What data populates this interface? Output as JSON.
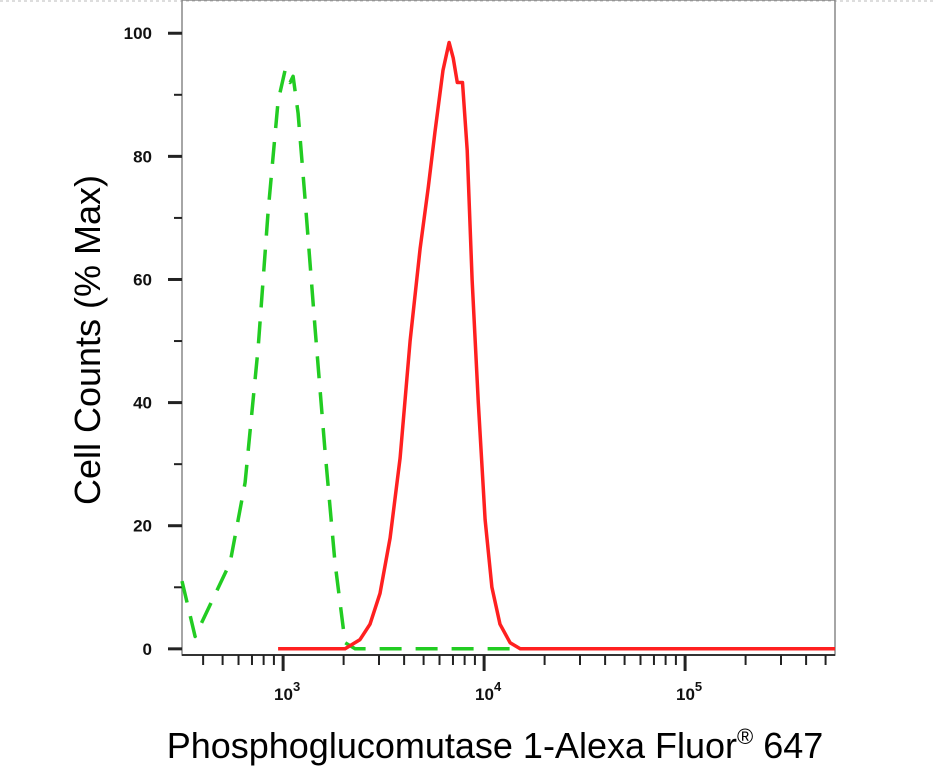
{
  "chart_data": {
    "type": "line",
    "title": "",
    "xlabel": "Phosphoglucomutase 1-Alexa Fluor",
    "xlabel_superscript": "®",
    "xlabel_suffix": " 647",
    "ylabel": "Cell Counts (% Max)",
    "xscale": "log",
    "xlim": [
      314,
      557000
    ],
    "ylim": [
      -1,
      105.4
    ],
    "yticks": [
      0,
      20,
      40,
      60,
      80,
      100
    ],
    "xticks": [
      {
        "base": "10",
        "exp": "3",
        "value": 1000
      },
      {
        "base": "10",
        "exp": "4",
        "value": 10000
      },
      {
        "base": "10",
        "exp": "5",
        "value": 100000
      }
    ],
    "grid": false,
    "legend": "none",
    "series": [
      {
        "color": "#22cc22",
        "style": "dashed",
        "x": [
          314,
          365,
          545,
          647,
          752,
          842,
          944,
          1023,
          1083,
          1121,
          1188,
          1287,
          1443,
          1617,
          1813,
          2035,
          2282,
          557000
        ],
        "y": [
          11,
          2,
          14,
          27,
          49,
          71,
          89,
          94,
          92,
          93,
          87,
          73,
          52,
          32,
          14,
          1,
          0,
          0
        ]
      },
      {
        "color": "#ff2020",
        "style": "solid",
        "x": [
          944,
          2035,
          2414,
          2707,
          3036,
          3405,
          3819,
          4283,
          4803,
          5278,
          5700,
          6245,
          6698,
          7020,
          7357,
          7807,
          8236,
          8718,
          9353,
          10116,
          10937,
          12000,
          13474,
          15126,
          557000
        ],
        "y": [
          0,
          0,
          1.5,
          4,
          9,
          18,
          31,
          50,
          65,
          75,
          84,
          94,
          98.5,
          96,
          92,
          92,
          81,
          60,
          40,
          21,
          10,
          4,
          1,
          0,
          0
        ]
      }
    ]
  }
}
